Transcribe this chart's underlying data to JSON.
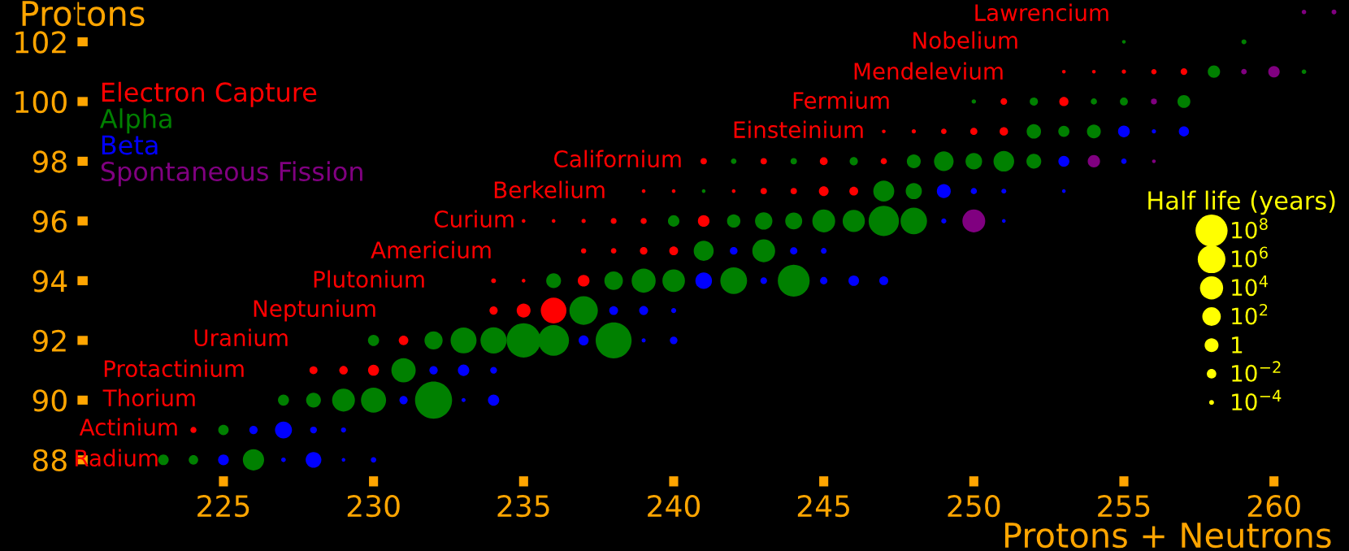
{
  "chart_data": {
    "type": "bubble",
    "xlabel": "Protons + Neutrons",
    "ylabel": "Protons",
    "legend_title": "Half life (years)",
    "xlim": [
      220.1,
      262.5
    ],
    "ylim": [
      87.07,
      103.4
    ],
    "xticks": [
      225,
      230,
      235,
      240,
      245,
      250,
      255,
      260
    ],
    "yticks": [
      88,
      90,
      92,
      94,
      96,
      98,
      100,
      102
    ],
    "legend": "top left",
    "size_legend": [
      {
        "value": 0.75,
        "label": "10$^{8}$"
      },
      {
        "value": 0.56,
        "label": "10$^{6}$"
      },
      {
        "value": 0.39,
        "label": "10$^{4}$"
      },
      {
        "value": 0.25,
        "label": "10$^{2}$"
      },
      {
        "value": 0.14,
        "label": "1"
      },
      {
        "value": 0.065,
        "label": "10$^{−2}$"
      },
      {
        "value": 0.017,
        "label": "10$^{−4}$"
      }
    ],
    "series": [
      {
        "name": "Electron Capture",
        "color": "#ff0000",
        "x": [
          224,
          228,
          229,
          230,
          231,
          234,
          235,
          236,
          234,
          235,
          237,
          237,
          238,
          239,
          240,
          235,
          236,
          237,
          238,
          239,
          241,
          239,
          240,
          242,
          243,
          244,
          245,
          246,
          241,
          243,
          245,
          247,
          247,
          248,
          249,
          250,
          251,
          251,
          253,
          253,
          254,
          255,
          256,
          257
        ],
        "values": [
          89,
          91,
          91,
          91,
          92,
          93,
          93,
          93,
          94,
          94,
          94,
          95,
          95,
          95,
          95,
          96,
          96,
          96,
          96,
          96,
          96,
          97,
          97,
          97,
          97,
          97,
          97,
          97,
          98,
          98,
          98,
          98,
          99,
          99,
          99,
          99,
          99,
          100,
          100,
          101,
          101,
          101,
          101,
          101
        ],
        "sizes": [
          0.027,
          0.047,
          0.053,
          0.088,
          0.067,
          0.049,
          0.14,
          0.48,
          0.017,
          0.01,
          0.1,
          0.02,
          0.022,
          0.041,
          0.057,
          0.01,
          0.01,
          0.013,
          0.025,
          0.027,
          0.098,
          0.01,
          0.01,
          0.01,
          0.03,
          0.03,
          0.069,
          0.056,
          0.03,
          0.03,
          0.045,
          0.028,
          0.01,
          0.013,
          0.022,
          0.037,
          0.052,
          0.032,
          0.062,
          0.01,
          0.01,
          0.013,
          0.02,
          0.032
        ]
      },
      {
        "name": "Alpha",
        "color": "#008000",
        "x": [
          223,
          224,
          226,
          225,
          227,
          228,
          229,
          230,
          232,
          231,
          230,
          232,
          233,
          234,
          235,
          236,
          238,
          237,
          236,
          238,
          239,
          240,
          242,
          244,
          241,
          243,
          240,
          242,
          243,
          244,
          245,
          246,
          247,
          248,
          241,
          247,
          248,
          242,
          244,
          246,
          248,
          249,
          250,
          251,
          252,
          252,
          253,
          254,
          250,
          252,
          254,
          255,
          257,
          258,
          261,
          255,
          259
        ],
        "values": [
          88,
          88,
          88,
          89,
          90,
          90,
          90,
          90,
          90,
          91,
          92,
          92,
          92,
          92,
          92,
          92,
          92,
          93,
          94,
          94,
          94,
          94,
          94,
          94,
          95,
          95,
          96,
          96,
          96,
          96,
          96,
          96,
          96,
          96,
          97,
          97,
          97,
          98,
          98,
          98,
          98,
          98,
          98,
          98,
          98,
          99,
          99,
          99,
          100,
          100,
          100,
          100,
          100,
          101,
          101,
          102,
          102
        ],
        "sizes": [
          0.081,
          0.065,
          0.33,
          0.079,
          0.089,
          0.16,
          0.38,
          0.46,
          1,
          0.43,
          0.091,
          0.24,
          0.49,
          0.5,
          0.85,
          0.69,
          0.94,
          0.59,
          0.16,
          0.25,
          0.42,
          0.37,
          0.52,
          0.74,
          0.29,
          0.38,
          0.095,
          0.13,
          0.22,
          0.21,
          0.38,
          0.36,
          0.67,
          0.51,
          0.01,
          0.32,
          0.19,
          0.022,
          0.03,
          0.049,
          0.14,
          0.28,
          0.2,
          0.31,
          0.16,
          0.15,
          0.09,
          0.14,
          0.014,
          0.049,
          0.028,
          0.046,
          0.12,
          0.11,
          0.015,
          0.01,
          0.018
        ]
      },
      {
        "name": "Beta",
        "color": "#0000ff",
        "x": [
          225,
          227,
          228,
          229,
          230,
          226,
          227,
          228,
          229,
          231,
          233,
          234,
          232,
          233,
          234,
          237,
          239,
          240,
          238,
          239,
          240,
          241,
          243,
          245,
          246,
          247,
          242,
          244,
          245,
          249,
          251,
          249,
          250,
          251,
          253,
          253,
          255,
          255,
          256,
          257
        ],
        "values": [
          88,
          88,
          88,
          88,
          88,
          89,
          89,
          89,
          89,
          90,
          90,
          90,
          91,
          91,
          91,
          92,
          92,
          92,
          93,
          93,
          93,
          94,
          94,
          94,
          94,
          94,
          95,
          95,
          95,
          96,
          96,
          97,
          97,
          97,
          97,
          98,
          98,
          99,
          99,
          99
        ],
        "sizes": [
          0.085,
          0.016,
          0.18,
          0.01,
          0.022,
          0.051,
          0.21,
          0.034,
          0.019,
          0.049,
          0.012,
          0.093,
          0.051,
          0.095,
          0.034,
          0.073,
          0.012,
          0.042,
          0.057,
          0.059,
          0.019,
          0.2,
          0.032,
          0.039,
          0.081,
          0.058,
          0.043,
          0.039,
          0.024,
          0.019,
          0.01,
          0.14,
          0.028,
          0.017,
          0.01,
          0.088,
          0.021,
          0.1,
          0.013,
          0.075
        ]
      },
      {
        "name": "Spontaneous Fission",
        "color": "#800080",
        "x": [
          250,
          254,
          256,
          256,
          259,
          260,
          261,
          262
        ],
        "values": [
          96,
          98,
          98,
          100,
          101,
          101,
          103,
          103
        ],
        "sizes": [
          0.38,
          0.11,
          0.01,
          0.026,
          0.022,
          0.095,
          0.015,
          0.017
        ]
      }
    ],
    "annotations": [
      "Radium",
      "Actinium",
      "Thorium",
      "Protactinium",
      "Uranium",
      "Neptunium",
      "Plutonium",
      "Americium",
      "Curium",
      "Berkelium",
      "Californium",
      "Einsteinium",
      "Fermium",
      "Mendelevium",
      "Nobelium",
      "Lawrencium"
    ]
  }
}
